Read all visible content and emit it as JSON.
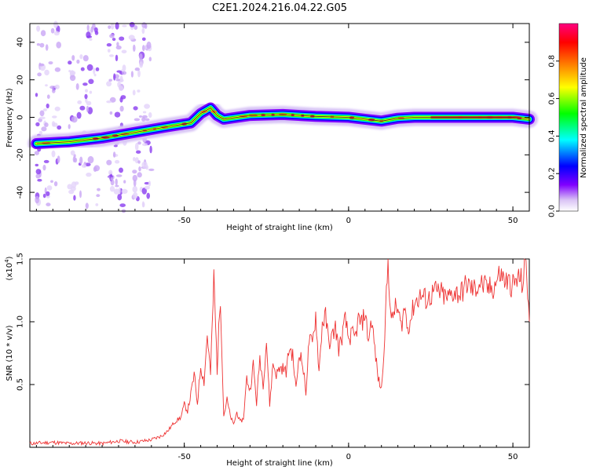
{
  "title": "C2E1.2024.216.04.22.G05",
  "chart_data": [
    {
      "type": "heatmap",
      "xlabel": "Height of straight line (km)",
      "ylabel": "Frequency (Hz)",
      "xlim": [
        -97,
        55
      ],
      "ylim": [
        -50,
        50
      ],
      "xticks": [
        -50,
        0,
        50
      ],
      "yticks": [
        -40,
        -20,
        0,
        20,
        40
      ],
      "ridge": [
        {
          "x": -95,
          "y": -14
        },
        {
          "x": -85,
          "y": -13
        },
        {
          "x": -75,
          "y": -11
        },
        {
          "x": -65,
          "y": -8
        },
        {
          "x": -55,
          "y": -5
        },
        {
          "x": -48,
          "y": -3
        },
        {
          "x": -45,
          "y": 2
        },
        {
          "x": -42,
          "y": 5
        },
        {
          "x": -40,
          "y": 1
        },
        {
          "x": -38,
          "y": -1
        },
        {
          "x": -30,
          "y": 1
        },
        {
          "x": -20,
          "y": 1.5
        },
        {
          "x": -10,
          "y": 0.5
        },
        {
          "x": 0,
          "y": 0
        },
        {
          "x": 5,
          "y": -1
        },
        {
          "x": 10,
          "y": -2
        },
        {
          "x": 15,
          "y": -0.5
        },
        {
          "x": 20,
          "y": 0
        },
        {
          "x": 30,
          "y": 0
        },
        {
          "x": 40,
          "y": 0
        },
        {
          "x": 50,
          "y": 0
        },
        {
          "x": 55,
          "y": -1
        }
      ],
      "colorbar": {
        "label": "Normalized spectral amplitude",
        "range": [
          0,
          1
        ],
        "ticks": [
          "0.0",
          "0.2",
          "0.4",
          "0.6",
          "0.8"
        ],
        "colors": [
          "#ffffff",
          "#8000ff",
          "#0000ff",
          "#00ffff",
          "#00ff00",
          "#ffff00",
          "#ff8000",
          "#ff0000",
          "#ff0080"
        ]
      }
    },
    {
      "type": "line",
      "xlabel": "Height of straight line (km)",
      "ylabel": "SNR (10 * v/v)",
      "y_scale_label": "(x10",
      "y_scale_exp": "4",
      "y_scale_close": ")",
      "xlim": [
        -97,
        55
      ],
      "ylim": [
        0,
        15000
      ],
      "xticks": [
        -50,
        0,
        50
      ],
      "yticks": [
        5000,
        10000,
        15000
      ],
      "ytick_labels": [
        "0.5",
        "1.0",
        "1.5"
      ],
      "color": "#ee3333",
      "series": [
        {
          "x": [
            -97,
            -90,
            -85,
            -80,
            -75,
            -70,
            -65,
            -60,
            -57,
            -55,
            -53,
            -51,
            -50,
            -49,
            -48,
            -47,
            -46,
            -45,
            -44,
            -43,
            -42,
            -41,
            -40,
            -39,
            -38,
            -37,
            -36,
            -35,
            -34,
            -33,
            -32,
            -31,
            -30,
            -29,
            -28,
            -27,
            -26,
            -25,
            -24,
            -23,
            -22,
            -21,
            -20,
            -19,
            -18,
            -17,
            -16,
            -15,
            -14,
            -13,
            -12,
            -11,
            -10,
            -9,
            -8,
            -7,
            -6,
            -5,
            -4,
            -3,
            -2,
            -1,
            0,
            1,
            2,
            3,
            4,
            5,
            6,
            7,
            8,
            9,
            10,
            11,
            12,
            13,
            14,
            15,
            16,
            17,
            18,
            19,
            20,
            22,
            24,
            26,
            28,
            30,
            32,
            34,
            36,
            38,
            40,
            42,
            44,
            46,
            48,
            50,
            52,
            53,
            54,
            55
          ],
          "y": [
            300,
            400,
            300,
            350,
            300,
            500,
            400,
            600,
            900,
            1300,
            2000,
            2400,
            3400,
            2900,
            4200,
            5800,
            3500,
            6500,
            5200,
            9000,
            5800,
            13500,
            6200,
            12200,
            2500,
            3800,
            2500,
            1800,
            2800,
            2000,
            2300,
            5500,
            4500,
            6600,
            3500,
            7200,
            5000,
            8500,
            3400,
            6700,
            5800,
            6300,
            6300,
            6000,
            8000,
            7300,
            4600,
            7700,
            6600,
            4400,
            8600,
            8200,
            10600,
            6000,
            9900,
            10400,
            8300,
            8800,
            9600,
            7800,
            8800,
            10200,
            8600,
            9000,
            8700,
            10200,
            9800,
            10800,
            8500,
            10200,
            7800,
            5500,
            4600,
            9000,
            14900,
            9800,
            11100,
            10900,
            9600,
            11200,
            9500,
            10300,
            11500,
            12100,
            11700,
            12400,
            12300,
            11800,
            12400,
            12200,
            13000,
            12500,
            13100,
            12600,
            12700,
            13800,
            13200,
            12900,
            13500,
            13000,
            15000,
            10000
          ]
        }
      ]
    }
  ]
}
